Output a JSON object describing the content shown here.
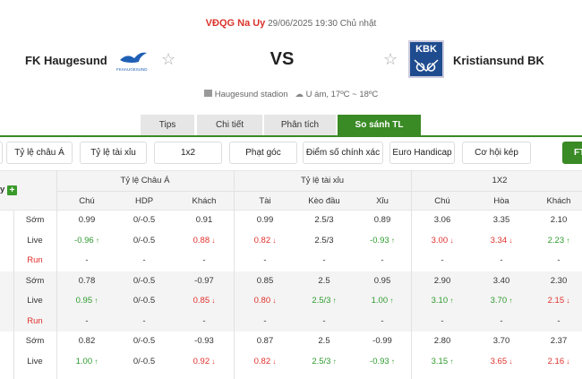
{
  "match": {
    "league": "VĐQG Na Uy",
    "datetime": "29/06/2025 19:30 Chủ nhật",
    "home": "FK Haugesund",
    "home_logo_text": "FKHAUGESUND",
    "away": "Kristiansund BK",
    "away_logo_text": "KBK",
    "vs": "VS",
    "stadium": "Haugesund stadion",
    "weather": "U ám, 17ºC ~ 18ºC"
  },
  "tabs": [
    {
      "label": "Tips"
    },
    {
      "label": "Chi tiết"
    },
    {
      "label": "Phân tích"
    },
    {
      "label": "So sánh TL",
      "active": true
    }
  ],
  "filters": [
    "Tỷ lệ châu Á",
    "Tỷ lệ tài xỉu",
    "1x2",
    "Phạt góc",
    "Điểm số chính xác",
    "Euro Handicap",
    "Cơ hội kép",
    "FT"
  ],
  "table": {
    "first_header": "y",
    "groups": [
      "Tỷ lệ Châu Á",
      "Tỷ lệ tài xỉu",
      "1X2"
    ],
    "columns": [
      "Chú",
      "HDP",
      "Khách",
      "Tài",
      "Kèo đầu",
      "Xỉu",
      "Chú",
      "Hòa",
      "Khách"
    ],
    "rows": [
      {
        "label": "Sớm",
        "cells": [
          [
            "0.99",
            ""
          ],
          [
            "0/-0.5",
            ""
          ],
          [
            "0.91",
            ""
          ],
          [
            "0.99",
            ""
          ],
          [
            "2.5/3",
            ""
          ],
          [
            "0.89",
            ""
          ],
          [
            "3.06",
            ""
          ],
          [
            "3.35",
            ""
          ],
          [
            "2.10",
            ""
          ]
        ]
      },
      {
        "label": "Live",
        "cells": [
          [
            "-0.96",
            "up"
          ],
          [
            "0/-0.5",
            ""
          ],
          [
            "0.88",
            "down"
          ],
          [
            "0.82",
            "down"
          ],
          [
            "2.5/3",
            ""
          ],
          [
            "-0.93",
            "up"
          ],
          [
            "3.00",
            "down"
          ],
          [
            "3.34",
            "down"
          ],
          [
            "2.23",
            "up"
          ]
        ]
      },
      {
        "label": "Run",
        "cells": [
          [
            "-",
            ""
          ],
          [
            "-",
            ""
          ],
          [
            "-",
            ""
          ],
          [
            "-",
            ""
          ],
          [
            "-",
            ""
          ],
          [
            "-",
            ""
          ],
          [
            "-",
            ""
          ],
          [
            "-",
            ""
          ],
          [
            "-",
            ""
          ]
        ]
      },
      {
        "label": "Sớm",
        "cells": [
          [
            "0.78",
            ""
          ],
          [
            "0/-0.5",
            ""
          ],
          [
            "-0.97",
            ""
          ],
          [
            "0.85",
            ""
          ],
          [
            "2.5",
            ""
          ],
          [
            "0.95",
            ""
          ],
          [
            "2.90",
            ""
          ],
          [
            "3.40",
            ""
          ],
          [
            "2.30",
            ""
          ]
        ]
      },
      {
        "label": "Live",
        "cells": [
          [
            "0.95",
            "up"
          ],
          [
            "0/-0.5",
            ""
          ],
          [
            "0.85",
            "down"
          ],
          [
            "0.80",
            "down"
          ],
          [
            "2.5/3",
            "up"
          ],
          [
            "1.00",
            "up"
          ],
          [
            "3.10",
            "up"
          ],
          [
            "3.70",
            "up"
          ],
          [
            "2.15",
            "down"
          ]
        ]
      },
      {
        "label": "Run",
        "cells": [
          [
            "-",
            ""
          ],
          [
            "-",
            ""
          ],
          [
            "-",
            ""
          ],
          [
            "-",
            ""
          ],
          [
            "-",
            ""
          ],
          [
            "-",
            ""
          ],
          [
            "-",
            ""
          ],
          [
            "-",
            ""
          ],
          [
            "-",
            ""
          ]
        ]
      },
      {
        "label": "Sớm",
        "cells": [
          [
            "0.82",
            ""
          ],
          [
            "0/-0.5",
            ""
          ],
          [
            "-0.93",
            ""
          ],
          [
            "0.87",
            ""
          ],
          [
            "2.5",
            ""
          ],
          [
            "-0.99",
            ""
          ],
          [
            "2.80",
            ""
          ],
          [
            "3.70",
            ""
          ],
          [
            "2.37",
            ""
          ]
        ]
      },
      {
        "label": "Live",
        "cells": [
          [
            "1.00",
            "up"
          ],
          [
            "0/-0.5",
            ""
          ],
          [
            "0.92",
            "down"
          ],
          [
            "0.82",
            "down"
          ],
          [
            "2.5/3",
            "up"
          ],
          [
            "-0.93",
            "up"
          ],
          [
            "3.15",
            "up"
          ],
          [
            "3.65",
            "down"
          ],
          [
            "2.16",
            "down"
          ]
        ]
      }
    ]
  },
  "colors": {
    "accent": "#3a8a25",
    "up": "#2e9a2e",
    "down": "#e0302c"
  }
}
